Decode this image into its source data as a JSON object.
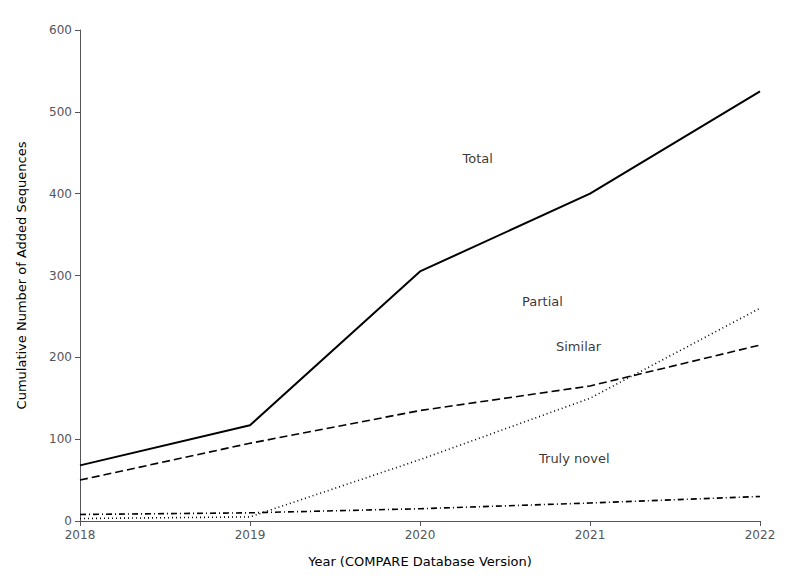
{
  "chart_data": {
    "type": "line",
    "x": [
      2018,
      2019,
      2020,
      2021,
      2022
    ],
    "series": [
      {
        "color": "#000000",
        "line_style": "solid",
        "values": [
          68,
          117,
          305,
          400,
          525
        ]
      },
      {
        "color": "#000000",
        "line_style": "dashed",
        "values": [
          50,
          95,
          135,
          165,
          215
        ]
      },
      {
        "color": "#000000",
        "line_style": "dotted",
        "values": [
          3,
          5,
          75,
          150,
          260
        ]
      },
      {
        "color": "#000000",
        "line_style": "dashdot",
        "values": [
          8,
          10,
          15,
          22,
          30
        ]
      }
    ],
    "annotations": [
      {
        "text": "Total",
        "x": 2020.25,
        "y": 435
      },
      {
        "text": "Partial",
        "x": 2020.6,
        "y": 260
      },
      {
        "text": "Similar",
        "x": 2020.8,
        "y": 205
      },
      {
        "text": "Truly novel",
        "x": 2020.7,
        "y": 68
      }
    ],
    "xlabel": "Year (COMPARE Database Version)",
    "ylabel": "Cumulative Number of Added Sequences",
    "xlim": [
      2018,
      2022
    ],
    "xticks": [
      2018,
      2019,
      2020,
      2021,
      2022
    ],
    "ylim": [
      0,
      600
    ],
    "yticks": [
      0,
      100,
      200,
      300,
      400,
      500,
      600
    ],
    "grid": false
  }
}
